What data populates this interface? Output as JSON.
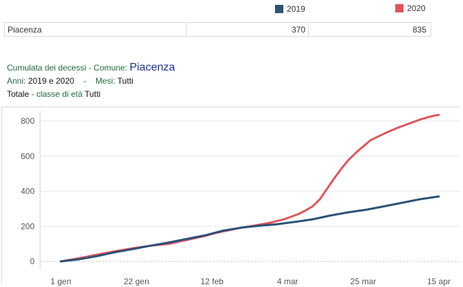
{
  "legend": {
    "items": [
      {
        "label": "2019",
        "color": "#2b5178"
      },
      {
        "label": "2020",
        "color": "#e0545b"
      }
    ]
  },
  "summary": {
    "rows": [
      {
        "name": "Piacenza",
        "v2019": "370",
        "v2020": "835"
      }
    ]
  },
  "title": {
    "line1_label": "Cumulata dei decessi -",
    "line1_comune_label": "Comune:",
    "line1_comune": "Piacenza",
    "line2_anni_label": "Anni:",
    "line2_anni": "2019 e 2020",
    "line2_sep": "-",
    "line2_mesi_label": "Mesi:",
    "line2_mesi": "Tutti",
    "line3_totale": "Totale",
    "line3_classe_label": "- classe di età",
    "line3_classe": "Tutti"
  },
  "chart_data": {
    "type": "line",
    "title": "Cumulata dei decessi - Comune: Piacenza",
    "xlabel": "",
    "ylabel": "",
    "x_unit": "days since 1 gen",
    "xlim": [
      -8,
      107
    ],
    "ylim": [
      -30,
      850
    ],
    "grid": true,
    "x_ticks": [
      {
        "day": 0,
        "label": "1 gen"
      },
      {
        "day": 21,
        "label": "22 gen"
      },
      {
        "day": 42,
        "label": "12 feb"
      },
      {
        "day": 63,
        "label": "4 mar"
      },
      {
        "day": 84,
        "label": "25 mar"
      },
      {
        "day": 105,
        "label": "15 apr"
      }
    ],
    "y_ticks": [
      {
        "value": 0,
        "label": "0"
      },
      {
        "value": 200,
        "label": "200"
      },
      {
        "value": 400,
        "label": "400"
      },
      {
        "value": 600,
        "label": "600"
      },
      {
        "value": 800,
        "label": "800"
      }
    ],
    "series": [
      {
        "name": "2019",
        "color": "#2b5178",
        "x": [
          0,
          5,
          10,
          15,
          20,
          25,
          30,
          35,
          40,
          45,
          50,
          55,
          60,
          65,
          70,
          75,
          80,
          85,
          90,
          95,
          100,
          105
        ],
        "y": [
          0,
          12,
          30,
          52,
          70,
          90,
          108,
          128,
          148,
          175,
          192,
          203,
          212,
          225,
          240,
          262,
          280,
          295,
          315,
          335,
          355,
          370
        ]
      },
      {
        "name": "2020",
        "color": "#e0545b",
        "x": [
          0,
          5,
          10,
          15,
          20,
          25,
          30,
          35,
          40,
          43,
          46,
          50,
          54,
          58,
          62,
          66,
          68,
          70,
          72,
          74,
          76,
          78,
          80,
          82,
          84,
          86,
          88,
          90,
          92,
          94,
          96,
          98,
          100,
          102,
          104,
          105
        ],
        "y": [
          0,
          18,
          38,
          58,
          75,
          90,
          100,
          122,
          145,
          162,
          175,
          192,
          205,
          220,
          240,
          270,
          290,
          315,
          355,
          415,
          475,
          530,
          580,
          620,
          655,
          690,
          710,
          730,
          748,
          765,
          780,
          795,
          810,
          822,
          832,
          835
        ]
      }
    ]
  }
}
